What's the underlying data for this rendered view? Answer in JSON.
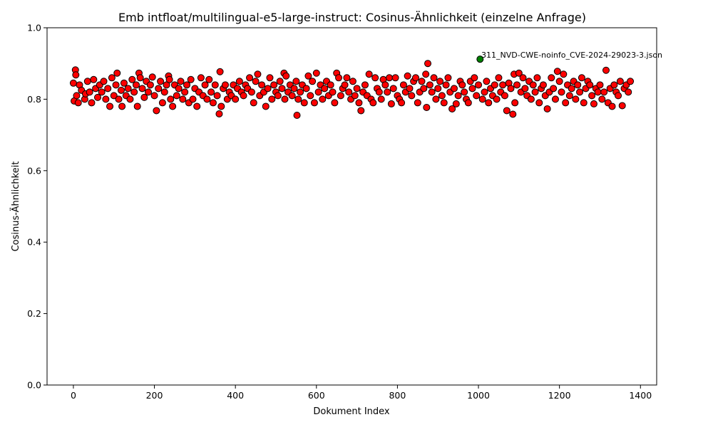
{
  "chart_data": {
    "type": "scatter",
    "title": "Emb intfloat/multilingual-e5-large-instruct: Cosinus-Ähnlichkeit (einzelne Anfrage)",
    "xlabel": "Dokument Index",
    "ylabel": "Cosinus-Ähnlichkeit",
    "xlim": [
      -65,
      1440
    ],
    "ylim": [
      0.0,
      1.0
    ],
    "x_ticks": [
      "0",
      "200",
      "400",
      "600",
      "800",
      "1000",
      "1200",
      "1400"
    ],
    "x_tick_values": [
      0,
      200,
      400,
      600,
      800,
      1000,
      1200,
      1400
    ],
    "y_ticks": [
      "0.0",
      "0.2",
      "0.4",
      "0.6",
      "0.8",
      "1.0"
    ],
    "y_tick_values": [
      0.0,
      0.2,
      0.4,
      0.6,
      0.8,
      1.0
    ],
    "grid": false,
    "legend": "none",
    "colors": {
      "points": "#ff0000",
      "highlight": "#008000",
      "edge": "#000000"
    },
    "highlight": {
      "x": 1004,
      "y": 0.912,
      "label": "311_NVD-CWE-noinfo_CVE-2024-29023-3.json"
    },
    "series": [
      {
        "x": [
          0,
          2,
          5,
          6,
          8,
          12,
          15,
          20,
          28,
          30,
          35,
          40,
          45,
          50,
          55,
          60,
          65,
          70,
          75,
          80,
          85,
          90,
          95,
          100,
          105,
          108,
          112,
          118,
          120,
          125,
          130,
          135,
          140,
          145,
          150,
          155,
          158,
          162,
          165,
          170,
          175,
          180,
          185,
          190,
          195,
          200,
          205,
          210,
          215,
          220,
          225,
          230,
          235,
          237,
          240,
          245,
          250,
          255,
          260,
          265,
          270,
          275,
          280,
          285,
          290,
          295,
          300,
          305,
          310,
          315,
          320,
          325,
          330,
          335,
          340,
          345,
          350,
          355,
          360,
          362,
          365,
          370,
          375,
          380,
          385,
          390,
          395,
          400,
          405,
          410,
          415,
          420,
          425,
          430,
          435,
          440,
          445,
          450,
          455,
          460,
          465,
          470,
          475,
          480,
          485,
          490,
          495,
          500,
          505,
          510,
          515,
          520,
          522,
          525,
          530,
          535,
          540,
          545,
          550,
          552,
          555,
          560,
          565,
          570,
          575,
          580,
          585,
          590,
          595,
          600,
          605,
          610,
          615,
          620,
          625,
          630,
          635,
          640,
          645,
          650,
          655,
          660,
          665,
          670,
          675,
          680,
          685,
          690,
          695,
          700,
          705,
          710,
          715,
          720,
          725,
          730,
          735,
          740,
          745,
          750,
          755,
          760,
          765,
          770,
          775,
          780,
          785,
          790,
          795,
          800,
          805,
          810,
          815,
          820,
          825,
          830,
          835,
          840,
          845,
          850,
          855,
          860,
          865,
          870,
          872,
          875,
          880,
          885,
          890,
          895,
          900,
          905,
          910,
          915,
          920,
          925,
          930,
          935,
          940,
          945,
          950,
          955,
          960,
          965,
          970,
          975,
          980,
          985,
          990,
          995,
          1000,
          1010,
          1015,
          1020,
          1025,
          1030,
          1035,
          1040,
          1045,
          1050,
          1055,
          1060,
          1065,
          1070,
          1075,
          1080,
          1085,
          1088,
          1090,
          1095,
          1100,
          1105,
          1110,
          1115,
          1120,
          1125,
          1130,
          1135,
          1140,
          1145,
          1150,
          1155,
          1160,
          1165,
          1170,
          1175,
          1180,
          1185,
          1190,
          1195,
          1200,
          1205,
          1210,
          1215,
          1220,
          1225,
          1230,
          1235,
          1240,
          1245,
          1250,
          1255,
          1260,
          1265,
          1270,
          1275,
          1280,
          1285,
          1290,
          1295,
          1300,
          1305,
          1310,
          1315,
          1320,
          1325,
          1330,
          1335,
          1340,
          1345,
          1350,
          1355,
          1360,
          1365,
          1370,
          1375
        ],
        "y": [
          0.845,
          0.795,
          0.882,
          0.868,
          0.81,
          0.79,
          0.84,
          0.825,
          0.8,
          0.815,
          0.85,
          0.82,
          0.79,
          0.855,
          0.83,
          0.805,
          0.84,
          0.82,
          0.85,
          0.8,
          0.83,
          0.78,
          0.86,
          0.81,
          0.84,
          0.873,
          0.8,
          0.825,
          0.78,
          0.845,
          0.81,
          0.83,
          0.8,
          0.855,
          0.82,
          0.84,
          0.78,
          0.873,
          0.86,
          0.83,
          0.805,
          0.85,
          0.82,
          0.84,
          0.862,
          0.81,
          0.768,
          0.83,
          0.85,
          0.79,
          0.82,
          0.84,
          0.865,
          0.855,
          0.8,
          0.78,
          0.84,
          0.81,
          0.83,
          0.85,
          0.8,
          0.82,
          0.84,
          0.79,
          0.855,
          0.8,
          0.83,
          0.78,
          0.82,
          0.86,
          0.81,
          0.84,
          0.8,
          0.855,
          0.82,
          0.79,
          0.84,
          0.81,
          0.759,
          0.877,
          0.78,
          0.83,
          0.84,
          0.8,
          0.82,
          0.81,
          0.84,
          0.8,
          0.83,
          0.85,
          0.82,
          0.81,
          0.84,
          0.83,
          0.86,
          0.82,
          0.79,
          0.85,
          0.87,
          0.81,
          0.84,
          0.82,
          0.78,
          0.83,
          0.86,
          0.8,
          0.84,
          0.82,
          0.81,
          0.85,
          0.83,
          0.873,
          0.8,
          0.865,
          0.82,
          0.84,
          0.81,
          0.83,
          0.85,
          0.755,
          0.8,
          0.82,
          0.84,
          0.79,
          0.83,
          0.865,
          0.81,
          0.85,
          0.79,
          0.873,
          0.82,
          0.84,
          0.8,
          0.83,
          0.85,
          0.81,
          0.84,
          0.82,
          0.79,
          0.873,
          0.86,
          0.81,
          0.83,
          0.84,
          0.86,
          0.82,
          0.8,
          0.85,
          0.81,
          0.83,
          0.79,
          0.768,
          0.82,
          0.84,
          0.81,
          0.87,
          0.8,
          0.79,
          0.86,
          0.83,
          0.82,
          0.8,
          0.855,
          0.84,
          0.82,
          0.86,
          0.787,
          0.83,
          0.86,
          0.81,
          0.8,
          0.79,
          0.84,
          0.82,
          0.865,
          0.83,
          0.81,
          0.85,
          0.86,
          0.79,
          0.82,
          0.85,
          0.83,
          0.87,
          0.777,
          0.9,
          0.84,
          0.82,
          0.86,
          0.8,
          0.83,
          0.85,
          0.81,
          0.79,
          0.84,
          0.86,
          0.82,
          0.773,
          0.83,
          0.787,
          0.81,
          0.85,
          0.84,
          0.82,
          0.8,
          0.79,
          0.85,
          0.83,
          0.86,
          0.81,
          0.84,
          0.8,
          0.82,
          0.85,
          0.79,
          0.83,
          0.81,
          0.84,
          0.8,
          0.86,
          0.82,
          0.84,
          0.81,
          0.768,
          0.845,
          0.83,
          0.758,
          0.87,
          0.79,
          0.84,
          0.873,
          0.82,
          0.86,
          0.83,
          0.81,
          0.85,
          0.8,
          0.84,
          0.82,
          0.86,
          0.79,
          0.83,
          0.84,
          0.81,
          0.773,
          0.82,
          0.86,
          0.83,
          0.8,
          0.878,
          0.85,
          0.82,
          0.87,
          0.79,
          0.84,
          0.81,
          0.83,
          0.85,
          0.8,
          0.84,
          0.82,
          0.86,
          0.79,
          0.83,
          0.85,
          0.84,
          0.81,
          0.787,
          0.83,
          0.82,
          0.84,
          0.8,
          0.82,
          0.881,
          0.79,
          0.83,
          0.78,
          0.84,
          0.82,
          0.81,
          0.85,
          0.782,
          0.83,
          0.84,
          0.82,
          0.85
        ]
      }
    ]
  }
}
